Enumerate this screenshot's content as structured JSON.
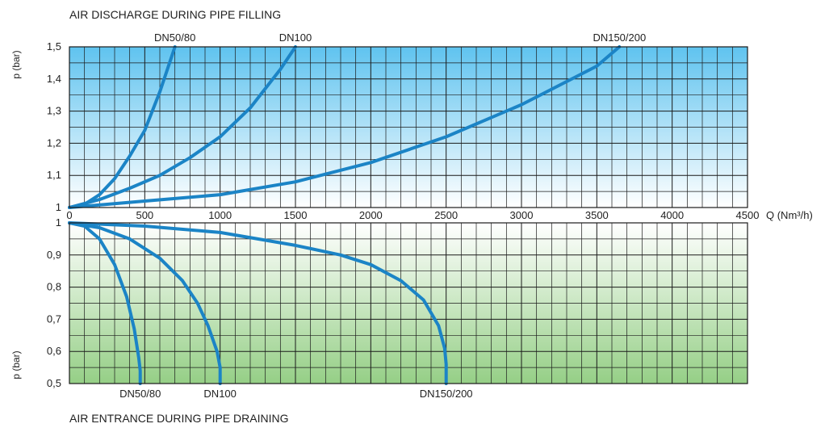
{
  "chart_data": [
    {
      "type": "line",
      "title": "AIR DISCHARGE DURING PIPE FILLING",
      "xlabel": "Q (Nm³/h)",
      "ylabel": "p (bar)",
      "xlim": [
        0,
        4500
      ],
      "ylim": [
        1,
        1.5
      ],
      "x_ticks": [
        "0",
        "500",
        "1000",
        "1500",
        "2000",
        "2500",
        "3000",
        "3500",
        "4000",
        "4500"
      ],
      "y_ticks": [
        "1",
        "1,1",
        "1,2",
        "1,3",
        "1,4",
        "1,5"
      ],
      "grid": true,
      "background": [
        "#5fc3ef",
        "#ffffff"
      ],
      "series": [
        {
          "name": "DN50/80",
          "x": [
            0,
            100,
            200,
            300,
            400,
            500,
            600,
            700
          ],
          "y": [
            1.0,
            1.01,
            1.04,
            1.09,
            1.16,
            1.24,
            1.36,
            1.5
          ]
        },
        {
          "name": "DN100",
          "x": [
            0,
            200,
            400,
            600,
            800,
            1000,
            1200,
            1400,
            1500
          ],
          "y": [
            1.0,
            1.025,
            1.06,
            1.1,
            1.155,
            1.22,
            1.31,
            1.43,
            1.5
          ]
        },
        {
          "name": "DN150/200",
          "x": [
            0,
            250,
            500,
            1000,
            1500,
            2000,
            2500,
            3000,
            3500,
            3650
          ],
          "y": [
            1.0,
            1.01,
            1.02,
            1.04,
            1.08,
            1.14,
            1.22,
            1.32,
            1.44,
            1.5
          ]
        }
      ]
    },
    {
      "type": "line",
      "title": "AIR ENTRANCE DURING PIPE DRAINING",
      "xlabel": "Q (Nm³/h)",
      "ylabel": "p (bar)",
      "xlim": [
        0,
        4500
      ],
      "ylim": [
        0.5,
        1
      ],
      "y_ticks": [
        "0,5",
        "0,6",
        "0,7",
        "0,8",
        "0,9",
        "1"
      ],
      "grid": true,
      "background": [
        "#ffffff",
        "#95cf86"
      ],
      "series": [
        {
          "name": "DN50/80",
          "x": [
            0,
            100,
            200,
            300,
            380,
            430,
            460,
            470,
            470
          ],
          "y": [
            1.0,
            0.99,
            0.95,
            0.87,
            0.77,
            0.67,
            0.58,
            0.54,
            0.5
          ]
        },
        {
          "name": "DN100",
          "x": [
            0,
            200,
            400,
            600,
            750,
            850,
            920,
            980,
            1000,
            1000
          ],
          "y": [
            1.0,
            0.985,
            0.95,
            0.89,
            0.82,
            0.75,
            0.68,
            0.6,
            0.55,
            0.5
          ]
        },
        {
          "name": "DN150/200",
          "x": [
            0,
            500,
            1000,
            1500,
            1800,
            2000,
            2200,
            2350,
            2450,
            2490,
            2500,
            2500
          ],
          "y": [
            1.0,
            0.99,
            0.97,
            0.93,
            0.9,
            0.87,
            0.82,
            0.76,
            0.68,
            0.61,
            0.56,
            0.5
          ]
        }
      ]
    }
  ],
  "colors": {
    "curve": "#1b84c6",
    "grid": "#1a1a1a"
  }
}
